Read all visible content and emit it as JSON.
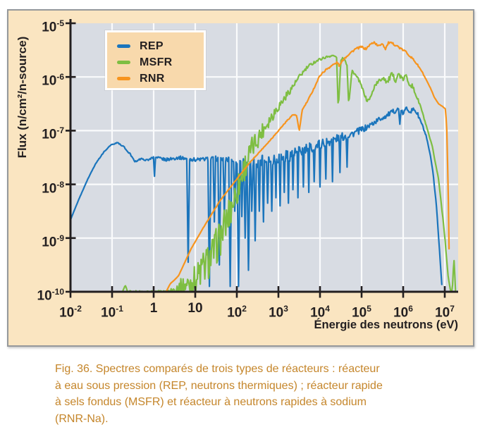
{
  "figure": {
    "caption_lines": [
      "Fig. 36. Spectres comparés de trois types de réacteurs : réacteur",
      "à eau sous pression (REP, neutrons thermiques) ; réacteur rapide",
      "à sels fondus (MSFR) et réacteur à neutrons rapides à sodium",
      "(RNR-Na)."
    ]
  },
  "chart_data": {
    "type": "line",
    "title": "",
    "xlabel": "Énergie des neutrons (eV)",
    "ylabel": "Flux (n/cm²/n-source)",
    "x_scale": "log",
    "y_scale": "log",
    "xlim_log10": [
      -2,
      7.32
    ],
    "ylim_log10": [
      -10,
      -5
    ],
    "grid": true,
    "legend_position": "top-left",
    "x_ticks": [
      {
        "log": -2,
        "base": "10",
        "exp": "-2"
      },
      {
        "log": -1,
        "base": "10",
        "exp": "-1"
      },
      {
        "log": 0,
        "base": "1",
        "exp": ""
      },
      {
        "log": 1,
        "base": "10",
        "exp": ""
      },
      {
        "log": 2,
        "base": "10",
        "exp": "2"
      },
      {
        "log": 3,
        "base": "10",
        "exp": "3"
      },
      {
        "log": 4,
        "base": "10",
        "exp": "4"
      },
      {
        "log": 5,
        "base": "10",
        "exp": "5"
      },
      {
        "log": 6,
        "base": "10",
        "exp": "6"
      },
      {
        "log": 7,
        "base": "10",
        "exp": "7"
      }
    ],
    "y_ticks": [
      {
        "log": -5,
        "base": "10",
        "exp": "-5"
      },
      {
        "log": -6,
        "base": "10",
        "exp": "-6"
      },
      {
        "log": -7,
        "base": "10",
        "exp": "-7"
      },
      {
        "log": -8,
        "base": "10",
        "exp": "-8"
      },
      {
        "log": -9,
        "base": "10",
        "exp": "-9"
      },
      {
        "log": -10,
        "base": "10",
        "exp": "-10"
      }
    ],
    "grid_x_log": [
      -1,
      0,
      1,
      2,
      3,
      4,
      5,
      6,
      7
    ],
    "grid_y_log": [
      -6,
      -7,
      -8,
      -9
    ],
    "colors": {
      "plot_bg": "#D8DCE3",
      "grid": "#FAFBFC",
      "axis": "#231F20",
      "panel_bg": "#FAE5C1",
      "legend_bg": "#F8D9AC",
      "caption_text": "#C5862B"
    },
    "series": [
      {
        "name": "REP",
        "color": "#1B75BC",
        "description": "thermal spectrum: Maxwellian hump near 0.1 eV, epithermal plateau with resonance dips, fast bump near 1e6 eV",
        "points_log10E_log10Flux": [
          [
            -2,
            -8.66
          ],
          [
            -1.8,
            -8.28
          ],
          [
            -1.6,
            -7.93
          ],
          [
            -1.4,
            -7.62
          ],
          [
            -1.2,
            -7.4
          ],
          [
            -1.05,
            -7.28
          ],
          [
            -0.88,
            -7.22
          ],
          [
            -0.72,
            -7.3
          ],
          [
            -0.55,
            -7.45
          ],
          [
            -0.45,
            -7.58
          ],
          [
            -0.3,
            -7.52
          ],
          [
            -0.15,
            -7.55
          ],
          [
            0,
            -7.5
          ],
          [
            0.3,
            -7.54
          ],
          [
            0.6,
            -7.5
          ],
          [
            1.0,
            -7.54
          ],
          [
            1.5,
            -7.52
          ],
          [
            2.0,
            -7.56
          ],
          [
            2.4,
            -7.58
          ],
          [
            2.8,
            -7.53
          ],
          [
            3.2,
            -7.47
          ],
          [
            3.6,
            -7.37
          ],
          [
            4.0,
            -7.25
          ],
          [
            4.4,
            -7.15
          ],
          [
            4.8,
            -7.05
          ],
          [
            5.1,
            -6.95
          ],
          [
            5.4,
            -6.8
          ],
          [
            5.6,
            -6.72
          ],
          [
            5.75,
            -6.65
          ],
          [
            5.88,
            -6.6
          ],
          [
            6.0,
            -6.68
          ],
          [
            6.08,
            -6.58
          ],
          [
            6.18,
            -6.64
          ],
          [
            6.27,
            -6.6
          ],
          [
            6.35,
            -6.7
          ],
          [
            6.45,
            -6.88
          ],
          [
            6.55,
            -7.1
          ],
          [
            6.65,
            -7.45
          ],
          [
            6.72,
            -7.8
          ],
          [
            6.8,
            -8.4
          ],
          [
            6.88,
            -9.3
          ],
          [
            6.94,
            -10
          ]
        ],
        "noise_amp_log10": [
          [
            -2,
            0
          ],
          [
            -0.3,
            0.015
          ],
          [
            0.2,
            0.03
          ],
          [
            1.2,
            0.035
          ],
          [
            2.1,
            0.07
          ],
          [
            2.5,
            0.12
          ],
          [
            3.2,
            0.12
          ],
          [
            4.2,
            0.09
          ],
          [
            5.0,
            0.06
          ],
          [
            5.6,
            0.045
          ],
          [
            6.35,
            0.04
          ],
          [
            6.6,
            0.015
          ],
          [
            6.94,
            0.005
          ]
        ],
        "resonance_dips_x_floor_halfwidth": [
          [
            0.02,
            -7.85,
            0.025
          ],
          [
            0.83,
            -9.45,
            0.035
          ],
          [
            1.34,
            -9.9,
            0.035
          ],
          [
            1.46,
            -8.7,
            0.03
          ],
          [
            1.58,
            -9.5,
            0.035
          ],
          [
            1.7,
            -8.6,
            0.03
          ],
          [
            1.84,
            -9.9,
            0.035
          ],
          [
            1.95,
            -8.5,
            0.03
          ],
          [
            2.04,
            -9.9,
            0.035
          ],
          [
            2.12,
            -8.6,
            0.03
          ],
          [
            2.2,
            -9.0,
            0.03
          ],
          [
            2.28,
            -9.6,
            0.035
          ],
          [
            2.36,
            -8.5,
            0.03
          ],
          [
            2.44,
            -9.05,
            0.03
          ],
          [
            2.54,
            -8.5,
            0.025
          ],
          [
            2.64,
            -8.7,
            0.025
          ],
          [
            2.74,
            -8.35,
            0.025
          ],
          [
            2.84,
            -8.5,
            0.025
          ],
          [
            2.94,
            -8.25,
            0.02
          ],
          [
            3.04,
            -8.4,
            0.025
          ],
          [
            3.14,
            -8.15,
            0.02
          ],
          [
            3.24,
            -8.35,
            0.02
          ],
          [
            3.35,
            -8.1,
            0.02
          ],
          [
            3.47,
            -8.25,
            0.02
          ],
          [
            3.6,
            -8.05,
            0.02
          ],
          [
            3.73,
            -8.15,
            0.02
          ],
          [
            3.86,
            -7.95,
            0.02
          ],
          [
            4.0,
            -8.05,
            0.02
          ],
          [
            4.14,
            -7.9,
            0.02
          ],
          [
            4.3,
            -7.95,
            0.02
          ],
          [
            4.48,
            -7.78,
            0.02
          ],
          [
            4.65,
            -7.68,
            0.02
          ],
          [
            5.92,
            -6.88,
            0.03
          ]
        ]
      },
      {
        "name": "MSFR",
        "color": "#7EBE42",
        "description": "molten-salt fast reactor: noisy rise from ~3 eV, peak ~2.5e-6 near 2e4 eV with deep dips, jagged second bump near 1e6 eV",
        "points_log10E_log10Flux": [
          [
            -0.75,
            -10
          ],
          [
            -0.68,
            -9.88
          ],
          [
            -0.62,
            -10
          ],
          [
            0.4,
            -10
          ],
          [
            0.55,
            -9.93
          ],
          [
            0.8,
            -9.87
          ],
          [
            1.0,
            -9.78
          ],
          [
            1.15,
            -9.6
          ],
          [
            1.3,
            -9.45
          ],
          [
            1.45,
            -9.25
          ],
          [
            1.6,
            -9.0
          ],
          [
            1.75,
            -8.7
          ],
          [
            1.9,
            -8.35
          ],
          [
            2.05,
            -8.0
          ],
          [
            2.2,
            -7.65
          ],
          [
            2.35,
            -7.35
          ],
          [
            2.5,
            -7.15
          ],
          [
            2.65,
            -6.95
          ],
          [
            2.8,
            -6.78
          ],
          [
            2.95,
            -6.6
          ],
          [
            3.1,
            -6.45
          ],
          [
            3.25,
            -6.28
          ],
          [
            3.4,
            -6.12
          ],
          [
            3.55,
            -5.95
          ],
          [
            3.7,
            -5.82
          ],
          [
            3.85,
            -5.73
          ],
          [
            4.0,
            -5.67
          ],
          [
            4.15,
            -5.63
          ],
          [
            4.3,
            -5.6
          ],
          [
            4.4,
            -5.63
          ],
          [
            4.44,
            -6.62
          ],
          [
            4.5,
            -5.7
          ],
          [
            4.57,
            -5.63
          ],
          [
            4.65,
            -5.78
          ],
          [
            4.69,
            -6.5
          ],
          [
            4.77,
            -5.88
          ],
          [
            4.85,
            -5.96
          ],
          [
            4.95,
            -6.08
          ],
          [
            5.05,
            -6.28
          ],
          [
            5.13,
            -6.45
          ],
          [
            5.22,
            -6.38
          ],
          [
            5.32,
            -6.15
          ],
          [
            5.42,
            -6.08
          ],
          [
            5.52,
            -6.0
          ],
          [
            5.62,
            -6.1
          ],
          [
            5.72,
            -5.96
          ],
          [
            5.82,
            -6.05
          ],
          [
            5.9,
            -5.94
          ],
          [
            5.98,
            -6.06
          ],
          [
            6.06,
            -5.98
          ],
          [
            6.14,
            -6.1
          ],
          [
            6.22,
            -6.18
          ],
          [
            6.3,
            -6.32
          ],
          [
            6.42,
            -6.55
          ],
          [
            6.55,
            -6.9
          ],
          [
            6.7,
            -7.3
          ],
          [
            6.85,
            -7.9
          ],
          [
            6.98,
            -8.8
          ],
          [
            7.08,
            -9.7
          ],
          [
            7.14,
            -10
          ],
          [
            7.18,
            -10
          ],
          [
            7.22,
            -9.35
          ],
          [
            7.26,
            -10
          ]
        ],
        "noise_amp_log10": [
          [
            -0.75,
            0
          ],
          [
            -0.6,
            0.02
          ],
          [
            0.3,
            0.02
          ],
          [
            0.5,
            0.1
          ],
          [
            0.8,
            0.2
          ],
          [
            1.1,
            0.33
          ],
          [
            1.7,
            0.35
          ],
          [
            2.1,
            0.28
          ],
          [
            2.5,
            0.18
          ],
          [
            2.9,
            0.1
          ],
          [
            3.3,
            0.06
          ],
          [
            3.8,
            0.03
          ],
          [
            4.35,
            0.015
          ],
          [
            5.3,
            0.03
          ],
          [
            5.5,
            0.05
          ],
          [
            6.25,
            0.05
          ],
          [
            6.45,
            0.015
          ],
          [
            7.26,
            0.01
          ]
        ],
        "resonance_dips_x_floor_halfwidth": []
      },
      {
        "name": "RNR",
        "color": "#F7941E",
        "description": "sodium fast reactor: smooth ramp from ~2 eV, sodium resonance dip at ~3e3 eV, broad maximum ~4.5e-6 between 1e5 and 1e6 eV",
        "points_log10E_log10Flux": [
          [
            0.3,
            -10
          ],
          [
            0.4,
            -9.85
          ],
          [
            0.5,
            -9.78
          ],
          [
            0.6,
            -9.7
          ],
          [
            0.75,
            -9.45
          ],
          [
            0.9,
            -9.2
          ],
          [
            1.05,
            -9.0
          ],
          [
            1.2,
            -8.8
          ],
          [
            1.4,
            -8.55
          ],
          [
            1.6,
            -8.3
          ],
          [
            1.8,
            -8.1
          ],
          [
            2.0,
            -7.9
          ],
          [
            2.2,
            -7.7
          ],
          [
            2.4,
            -7.52
          ],
          [
            2.6,
            -7.35
          ],
          [
            2.8,
            -7.18
          ],
          [
            3.0,
            -7.0
          ],
          [
            3.2,
            -6.82
          ],
          [
            3.35,
            -6.7
          ],
          [
            3.44,
            -6.72
          ],
          [
            3.5,
            -7.02
          ],
          [
            3.57,
            -6.62
          ],
          [
            3.7,
            -6.45
          ],
          [
            3.85,
            -6.22
          ],
          [
            4.0,
            -5.97
          ],
          [
            4.15,
            -5.86
          ],
          [
            4.3,
            -5.78
          ],
          [
            4.42,
            -5.73
          ],
          [
            4.47,
            -5.8
          ],
          [
            4.55,
            -5.68
          ],
          [
            4.7,
            -5.57
          ],
          [
            4.85,
            -5.48
          ],
          [
            5.0,
            -5.44
          ],
          [
            5.1,
            -5.48
          ],
          [
            5.2,
            -5.4
          ],
          [
            5.3,
            -5.35
          ],
          [
            5.4,
            -5.43
          ],
          [
            5.5,
            -5.37
          ],
          [
            5.57,
            -5.48
          ],
          [
            5.65,
            -5.36
          ],
          [
            5.75,
            -5.38
          ],
          [
            5.85,
            -5.42
          ],
          [
            5.95,
            -5.48
          ],
          [
            6.05,
            -5.52
          ],
          [
            6.15,
            -5.6
          ],
          [
            6.25,
            -5.68
          ],
          [
            6.35,
            -5.78
          ],
          [
            6.45,
            -5.9
          ],
          [
            6.55,
            -6.05
          ],
          [
            6.65,
            -6.2
          ],
          [
            6.75,
            -6.38
          ],
          [
            6.85,
            -6.5
          ],
          [
            6.95,
            -6.55
          ],
          [
            7.02,
            -6.6
          ],
          [
            7.05,
            -7.0
          ],
          [
            7.08,
            -8.0
          ],
          [
            7.1,
            -9.0
          ],
          [
            7.12,
            -10
          ]
        ],
        "noise_amp_log10": [
          [
            0.3,
            0
          ],
          [
            3.6,
            0.01
          ],
          [
            4.4,
            0.02
          ],
          [
            6.3,
            0.018
          ],
          [
            6.6,
            0.006
          ],
          [
            7.12,
            0
          ]
        ],
        "resonance_dips_x_floor_halfwidth": []
      }
    ]
  }
}
